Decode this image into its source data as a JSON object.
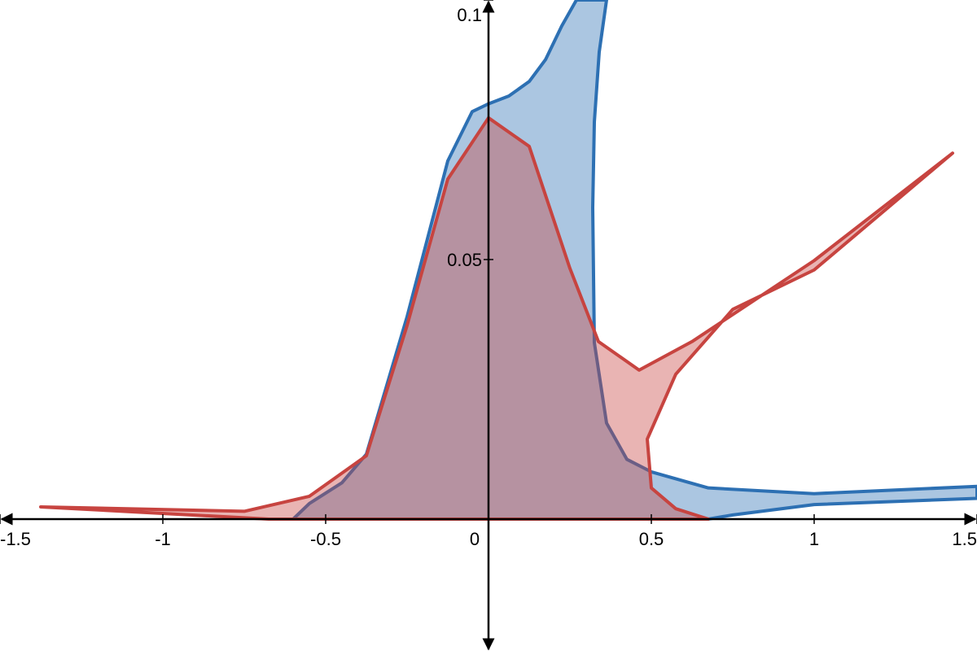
{
  "chart_data": {
    "type": "area",
    "xlim": [
      -1.5,
      1.5
    ],
    "ylim": [
      -0.0254,
      0.1
    ],
    "xticks": [
      -1.5,
      -1,
      -0.5,
      0,
      0.5,
      1,
      1.5
    ],
    "yticks": [
      0.05,
      0.1
    ],
    "grid": false,
    "series": [
      {
        "color": "#2d70b3",
        "x": [
          -0.6,
          -0.55,
          -0.45,
          -0.375,
          -0.25,
          -0.125,
          -0.05,
          0,
          0.0625,
          0.125,
          0.175,
          0.225,
          0.27,
          0.3625,
          0.34,
          0.325,
          0.32,
          0.325,
          0.3625,
          0.425,
          0.5,
          0.675,
          1,
          1.5,
          1.5,
          1,
          0.75,
          0.675,
          -0.6
        ],
        "values": [
          0,
          0.003,
          0.007,
          0.0125,
          0.039,
          0.069,
          0.0785,
          0.08,
          0.0815,
          0.0843,
          0.0885,
          0.095,
          0.1,
          0.1,
          0.09,
          0.0765,
          0.06,
          0.034,
          0.0185,
          0.0115,
          0.0091,
          0.006,
          0.0049,
          0.0063,
          0.004,
          0.0028,
          0.0008,
          0,
          0
        ]
      },
      {
        "color": "#c74440",
        "x": [
          -1.375,
          -0.675,
          0.675,
          0.575,
          0.5,
          0.4875,
          0.575,
          0.75,
          1,
          1.425,
          1,
          0.625,
          0.4625,
          0.3375,
          0.25,
          0.125,
          0,
          -0.125,
          -0.25,
          -0.375,
          -0.55,
          -0.75,
          -1.375
        ],
        "values": [
          0.00235,
          0,
          0,
          0.002,
          0.006,
          0.0154,
          0.0279,
          0.0404,
          0.048,
          0.0705,
          0.0498,
          0.0342,
          0.0287,
          0.0342,
          0.0483,
          0.0718,
          0.0773,
          0.0655,
          0.0373,
          0.0122,
          0.0044,
          0.0015,
          0.00235
        ]
      }
    ]
  }
}
